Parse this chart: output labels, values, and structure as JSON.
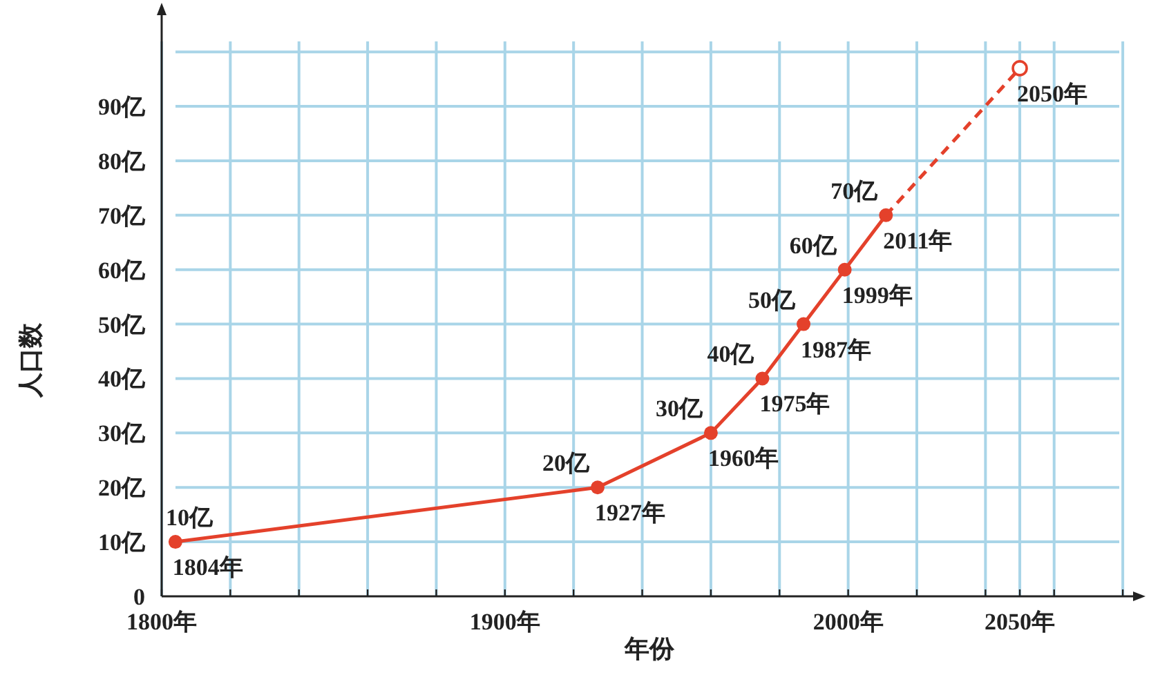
{
  "chart_data": {
    "type": "line",
    "xlabel": "年份",
    "ylabel": "人口数",
    "xlim": [
      1800,
      2083
    ],
    "ylim": [
      0,
      107
    ],
    "grid": true,
    "marker": "circle",
    "xticks": [
      {
        "value": 1800,
        "label": "1800年"
      },
      {
        "value": 1820,
        "label": null
      },
      {
        "value": 1840,
        "label": null
      },
      {
        "value": 1860,
        "label": null
      },
      {
        "value": 1880,
        "label": null
      },
      {
        "value": 1900,
        "label": "1900年"
      },
      {
        "value": 1920,
        "label": null
      },
      {
        "value": 1940,
        "label": null
      },
      {
        "value": 1960,
        "label": null
      },
      {
        "value": 1980,
        "label": null
      },
      {
        "value": 2000,
        "label": "2000年"
      },
      {
        "value": 2020,
        "label": null
      },
      {
        "value": 2040,
        "label": null
      },
      {
        "value": 2050,
        "label": "2050年"
      },
      {
        "value": 2060,
        "label": null
      },
      {
        "value": 2080,
        "label": null
      }
    ],
    "yticks": [
      0,
      {
        "value": 10,
        "label": "10亿"
      },
      {
        "value": 20,
        "label": "20亿"
      },
      {
        "value": 30,
        "label": "30亿"
      },
      {
        "value": 40,
        "label": "40亿"
      },
      {
        "value": 50,
        "label": "50亿"
      },
      {
        "value": 60,
        "label": "60亿"
      },
      {
        "value": 70,
        "label": "70亿"
      },
      {
        "value": 80,
        "label": "80亿"
      },
      {
        "value": 90,
        "label": "90亿"
      },
      {
        "value": 100,
        "label": null
      }
    ],
    "series": [
      {
        "color": "#e4412b",
        "line_style": "solid",
        "x": [
          1804,
          1927,
          1960,
          1975,
          1987,
          1999,
          2011
        ],
        "values": [
          10,
          20,
          30,
          40,
          50,
          60,
          70
        ],
        "value_labels": [
          "10亿",
          "20亿",
          "30亿",
          "40亿",
          "50亿",
          "60亿",
          "70亿"
        ]
      },
      {
        "type": "line",
        "color": "#e4412b",
        "line_style": "dashed",
        "marker": "none",
        "x": [
          2011,
          2050
        ],
        "values": [
          70,
          97
        ]
      },
      {
        "type": "scatter",
        "color": "#e4412b",
        "x": [
          2050
        ],
        "values": [
          97
        ]
      }
    ],
    "annotations": [
      {
        "text": "1804年",
        "x": 1804,
        "y": 10
      },
      {
        "text": "1927年",
        "x": 1927,
        "y": 20
      },
      {
        "text": "1960年",
        "x": 1960,
        "y": 30
      },
      {
        "text": "1975年",
        "x": 1975,
        "y": 40
      },
      {
        "text": "1987年",
        "x": 1987,
        "y": 50
      },
      {
        "text": "1999年",
        "x": 1999,
        "y": 60
      },
      {
        "text": "2011年",
        "x": 2011,
        "y": 70
      },
      {
        "text": "2050年",
        "x": 2050,
        "y": 97
      }
    ]
  }
}
